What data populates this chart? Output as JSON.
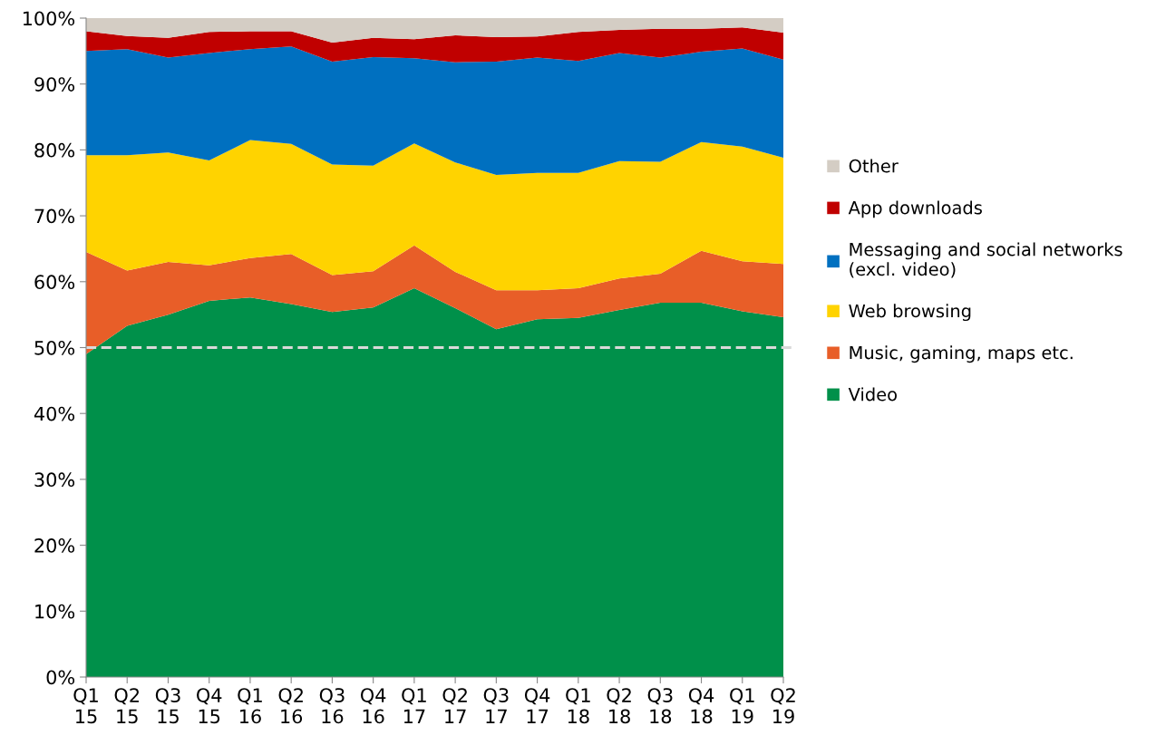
{
  "chart_data": {
    "type": "area",
    "stacked": true,
    "categories": [
      "Q1\n15",
      "Q2\n15",
      "Q3\n15",
      "Q4\n15",
      "Q1\n16",
      "Q2\n16",
      "Q3\n16",
      "Q4\n16",
      "Q1\n17",
      "Q2\n17",
      "Q3\n17",
      "Q4\n17",
      "Q1\n18",
      "Q2\n18",
      "Q3\n18",
      "Q4\n18",
      "Q1\n19",
      "Q2\n19"
    ],
    "series": [
      {
        "name": "Video",
        "color": "#00904a",
        "values": [
          49,
          53.3,
          55,
          57.1,
          57.6,
          56.6,
          55.4,
          56.1,
          59,
          56,
          52.8,
          54.3,
          54.5,
          55.7,
          56.8,
          56.8,
          55.5,
          54.6
        ]
      },
      {
        "name": "Music, gaming, maps etc.",
        "color": "#e85e28",
        "values": [
          15.5,
          8.4,
          8,
          5.4,
          6,
          7.6,
          5.6,
          5.5,
          6.5,
          5.5,
          5.9,
          4.4,
          4.5,
          4.8,
          4.4,
          7.9,
          7.6,
          8.1
        ]
      },
      {
        "name": "Web browsing",
        "color": "#ffd300",
        "values": [
          14.7,
          17.5,
          16.6,
          15.9,
          17.9,
          16.7,
          16.8,
          16,
          15.5,
          16.6,
          17.5,
          17.8,
          17.5,
          17.8,
          17,
          16.5,
          17.4,
          16.1
        ]
      },
      {
        "name": "Messaging and social networks\n(excl. video)",
        "color": "#0070c0",
        "values": [
          15.8,
          16.1,
          14.4,
          16.3,
          13.8,
          14.8,
          15.6,
          16.5,
          12.9,
          15.2,
          17.2,
          17.5,
          17,
          16.4,
          15.8,
          13.7,
          14.9,
          14.9
        ]
      },
      {
        "name": "App downloads",
        "color": "#c00000",
        "values": [
          3,
          2,
          3,
          3.2,
          2.7,
          2.3,
          2.9,
          2.9,
          2.9,
          4.1,
          3.7,
          3.2,
          4.4,
          3.5,
          4.4,
          3.5,
          3.2,
          4.1
        ]
      },
      {
        "name": "Other",
        "color": "#d4cdc4",
        "values": [
          2,
          2.7,
          3,
          2.1,
          2,
          2,
          3.7,
          3,
          3.2,
          2.6,
          2.9,
          2.8,
          2.1,
          1.8,
          1.6,
          1.6,
          1.4,
          2.2
        ]
      }
    ],
    "ylim": [
      0,
      100
    ],
    "yticks": [
      {
        "value": 0,
        "label": "0%"
      },
      {
        "value": 10,
        "label": "10%"
      },
      {
        "value": 20,
        "label": "20%"
      },
      {
        "value": 30,
        "label": "30%"
      },
      {
        "value": 40,
        "label": "40%"
      },
      {
        "value": 50,
        "label": "50%"
      },
      {
        "value": 60,
        "label": "60%"
      },
      {
        "value": 70,
        "label": "70%"
      },
      {
        "value": 80,
        "label": "80%"
      },
      {
        "value": 90,
        "label": "90%"
      },
      {
        "value": 100,
        "label": "100%"
      }
    ],
    "ref_lines": [
      {
        "axis": "y",
        "value": 50,
        "color": "#d9d9d9",
        "line_style": "dashed"
      }
    ],
    "grid": false,
    "legend": "right"
  }
}
